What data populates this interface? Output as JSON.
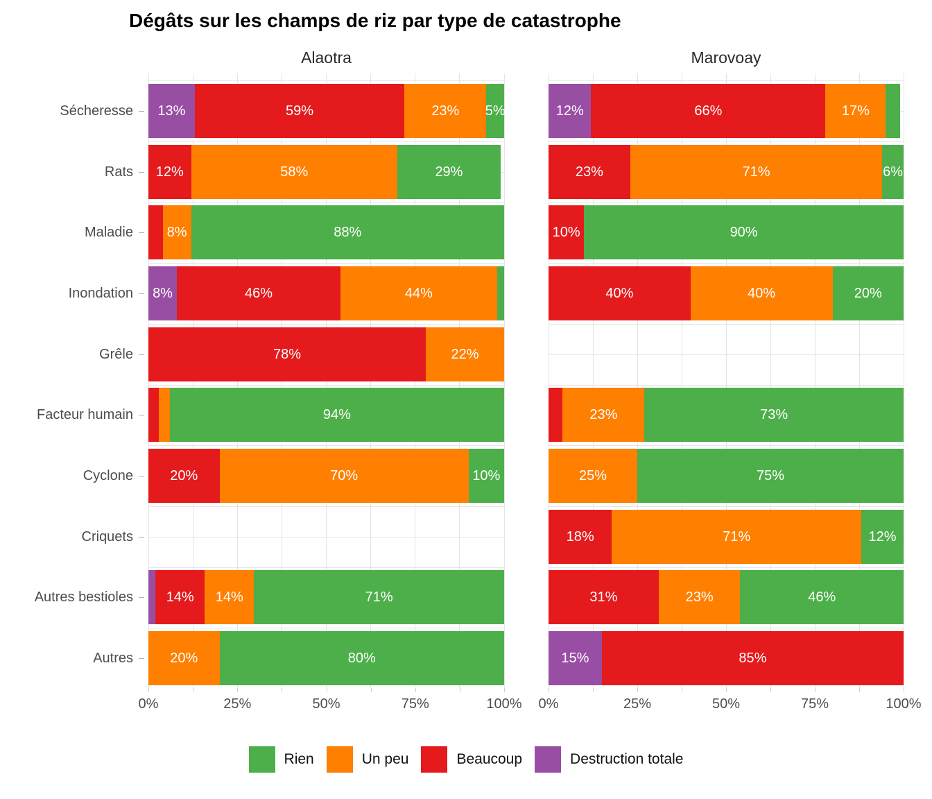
{
  "title": "Dégâts sur les champs de riz par type de catastrophe",
  "chart_data": {
    "type": "bar",
    "orientation": "horizontal",
    "stacked": true,
    "unit": "percent",
    "title": "Dégâts sur les champs de riz par type de catastrophe",
    "facets": [
      "Alaotra",
      "Marovoay"
    ],
    "categories": [
      "Sécheresse",
      "Rats",
      "Maladie",
      "Inondation",
      "Grêle",
      "Facteur humain",
      "Cyclone",
      "Criquets",
      "Autres bestioles",
      "Autres"
    ],
    "stack_order_left_to_right": [
      "Destruction totale",
      "Beaucoup",
      "Un peu",
      "Rien"
    ],
    "xlim": [
      0,
      100
    ],
    "x_ticks": [
      "0%",
      "25%",
      "50%",
      "75%",
      "100%"
    ],
    "grid": "vertical gridlines every 12.5%, horizontal gridlines at category centers and boundaries, light gray on white",
    "legend": {
      "position": "bottom",
      "entries": [
        {
          "label": "Rien",
          "color": "#4DAF4A"
        },
        {
          "label": "Un peu",
          "color": "#FF7F00"
        },
        {
          "label": "Beaucoup",
          "color": "#E41A1C"
        },
        {
          "label": "Destruction totale",
          "color": "#984EA3"
        }
      ]
    },
    "values": {
      "Alaotra": {
        "Sécheresse": [
          {
            "level": "Destruction totale",
            "value": 13,
            "label": "13%"
          },
          {
            "level": "Beaucoup",
            "value": 59,
            "label": "59%"
          },
          {
            "level": "Un peu",
            "value": 23,
            "label": "23%"
          },
          {
            "level": "Rien",
            "value": 5,
            "label": "5%"
          }
        ],
        "Rats": [
          {
            "level": "Beaucoup",
            "value": 12,
            "label": "12%"
          },
          {
            "level": "Un peu",
            "value": 58,
            "label": "58%"
          },
          {
            "level": "Rien",
            "value": 29,
            "label": "29%"
          }
        ],
        "Maladie": [
          {
            "level": "Beaucoup",
            "value": 4,
            "label": ""
          },
          {
            "level": "Un peu",
            "value": 8,
            "label": "8%"
          },
          {
            "level": "Rien",
            "value": 88,
            "label": "88%"
          }
        ],
        "Inondation": [
          {
            "level": "Destruction totale",
            "value": 8,
            "label": "8%"
          },
          {
            "level": "Beaucoup",
            "value": 46,
            "label": "46%"
          },
          {
            "level": "Un peu",
            "value": 44,
            "label": "44%"
          },
          {
            "level": "Rien",
            "value": 2,
            "label": ""
          }
        ],
        "Grêle": [
          {
            "level": "Beaucoup",
            "value": 78,
            "label": "78%"
          },
          {
            "level": "Un peu",
            "value": 22,
            "label": "22%"
          }
        ],
        "Facteur humain": [
          {
            "level": "Beaucoup",
            "value": 3,
            "label": ""
          },
          {
            "level": "Un peu",
            "value": 3,
            "label": ""
          },
          {
            "level": "Rien",
            "value": 94,
            "label": "94%"
          }
        ],
        "Cyclone": [
          {
            "level": "Beaucoup",
            "value": 20,
            "label": "20%"
          },
          {
            "level": "Un peu",
            "value": 70,
            "label": "70%"
          },
          {
            "level": "Rien",
            "value": 10,
            "label": "10%"
          }
        ],
        "Criquets": [],
        "Autres bestioles": [
          {
            "level": "Destruction totale",
            "value": 2,
            "label": ""
          },
          {
            "level": "Beaucoup",
            "value": 14,
            "label": "14%"
          },
          {
            "level": "Un peu",
            "value": 14,
            "label": "14%"
          },
          {
            "level": "Rien",
            "value": 71,
            "label": "71%"
          }
        ],
        "Autres": [
          {
            "level": "Un peu",
            "value": 20,
            "label": "20%"
          },
          {
            "level": "Rien",
            "value": 80,
            "label": "80%"
          }
        ]
      },
      "Marovoay": {
        "Sécheresse": [
          {
            "level": "Destruction totale",
            "value": 12,
            "label": "12%"
          },
          {
            "level": "Beaucoup",
            "value": 66,
            "label": "66%"
          },
          {
            "level": "Un peu",
            "value": 17,
            "label": "17%"
          },
          {
            "level": "Rien",
            "value": 4,
            "label": ""
          }
        ],
        "Rats": [
          {
            "level": "Beaucoup",
            "value": 23,
            "label": "23%"
          },
          {
            "level": "Un peu",
            "value": 71,
            "label": "71%"
          },
          {
            "level": "Rien",
            "value": 6,
            "label": "6%"
          }
        ],
        "Maladie": [
          {
            "level": "Beaucoup",
            "value": 10,
            "label": "10%"
          },
          {
            "level": "Rien",
            "value": 90,
            "label": "90%"
          }
        ],
        "Inondation": [
          {
            "level": "Beaucoup",
            "value": 40,
            "label": "40%"
          },
          {
            "level": "Un peu",
            "value": 40,
            "label": "40%"
          },
          {
            "level": "Rien",
            "value": 20,
            "label": "20%"
          }
        ],
        "Grêle": [],
        "Facteur humain": [
          {
            "level": "Beaucoup",
            "value": 4,
            "label": ""
          },
          {
            "level": "Un peu",
            "value": 23,
            "label": "23%"
          },
          {
            "level": "Rien",
            "value": 73,
            "label": "73%"
          }
        ],
        "Cyclone": [
          {
            "level": "Un peu",
            "value": 25,
            "label": "25%"
          },
          {
            "level": "Rien",
            "value": 75,
            "label": "75%"
          }
        ],
        "Criquets": [
          {
            "level": "Beaucoup",
            "value": 18,
            "label": "18%"
          },
          {
            "level": "Un peu",
            "value": 71,
            "label": "71%"
          },
          {
            "level": "Rien",
            "value": 12,
            "label": "12%"
          }
        ],
        "Autres bestioles": [
          {
            "level": "Beaucoup",
            "value": 31,
            "label": "31%"
          },
          {
            "level": "Un peu",
            "value": 23,
            "label": "23%"
          },
          {
            "level": "Rien",
            "value": 46,
            "label": "46%"
          }
        ],
        "Autres": [
          {
            "level": "Destruction totale",
            "value": 15,
            "label": "15%"
          },
          {
            "level": "Beaucoup",
            "value": 85,
            "label": "85%"
          }
        ]
      }
    }
  }
}
